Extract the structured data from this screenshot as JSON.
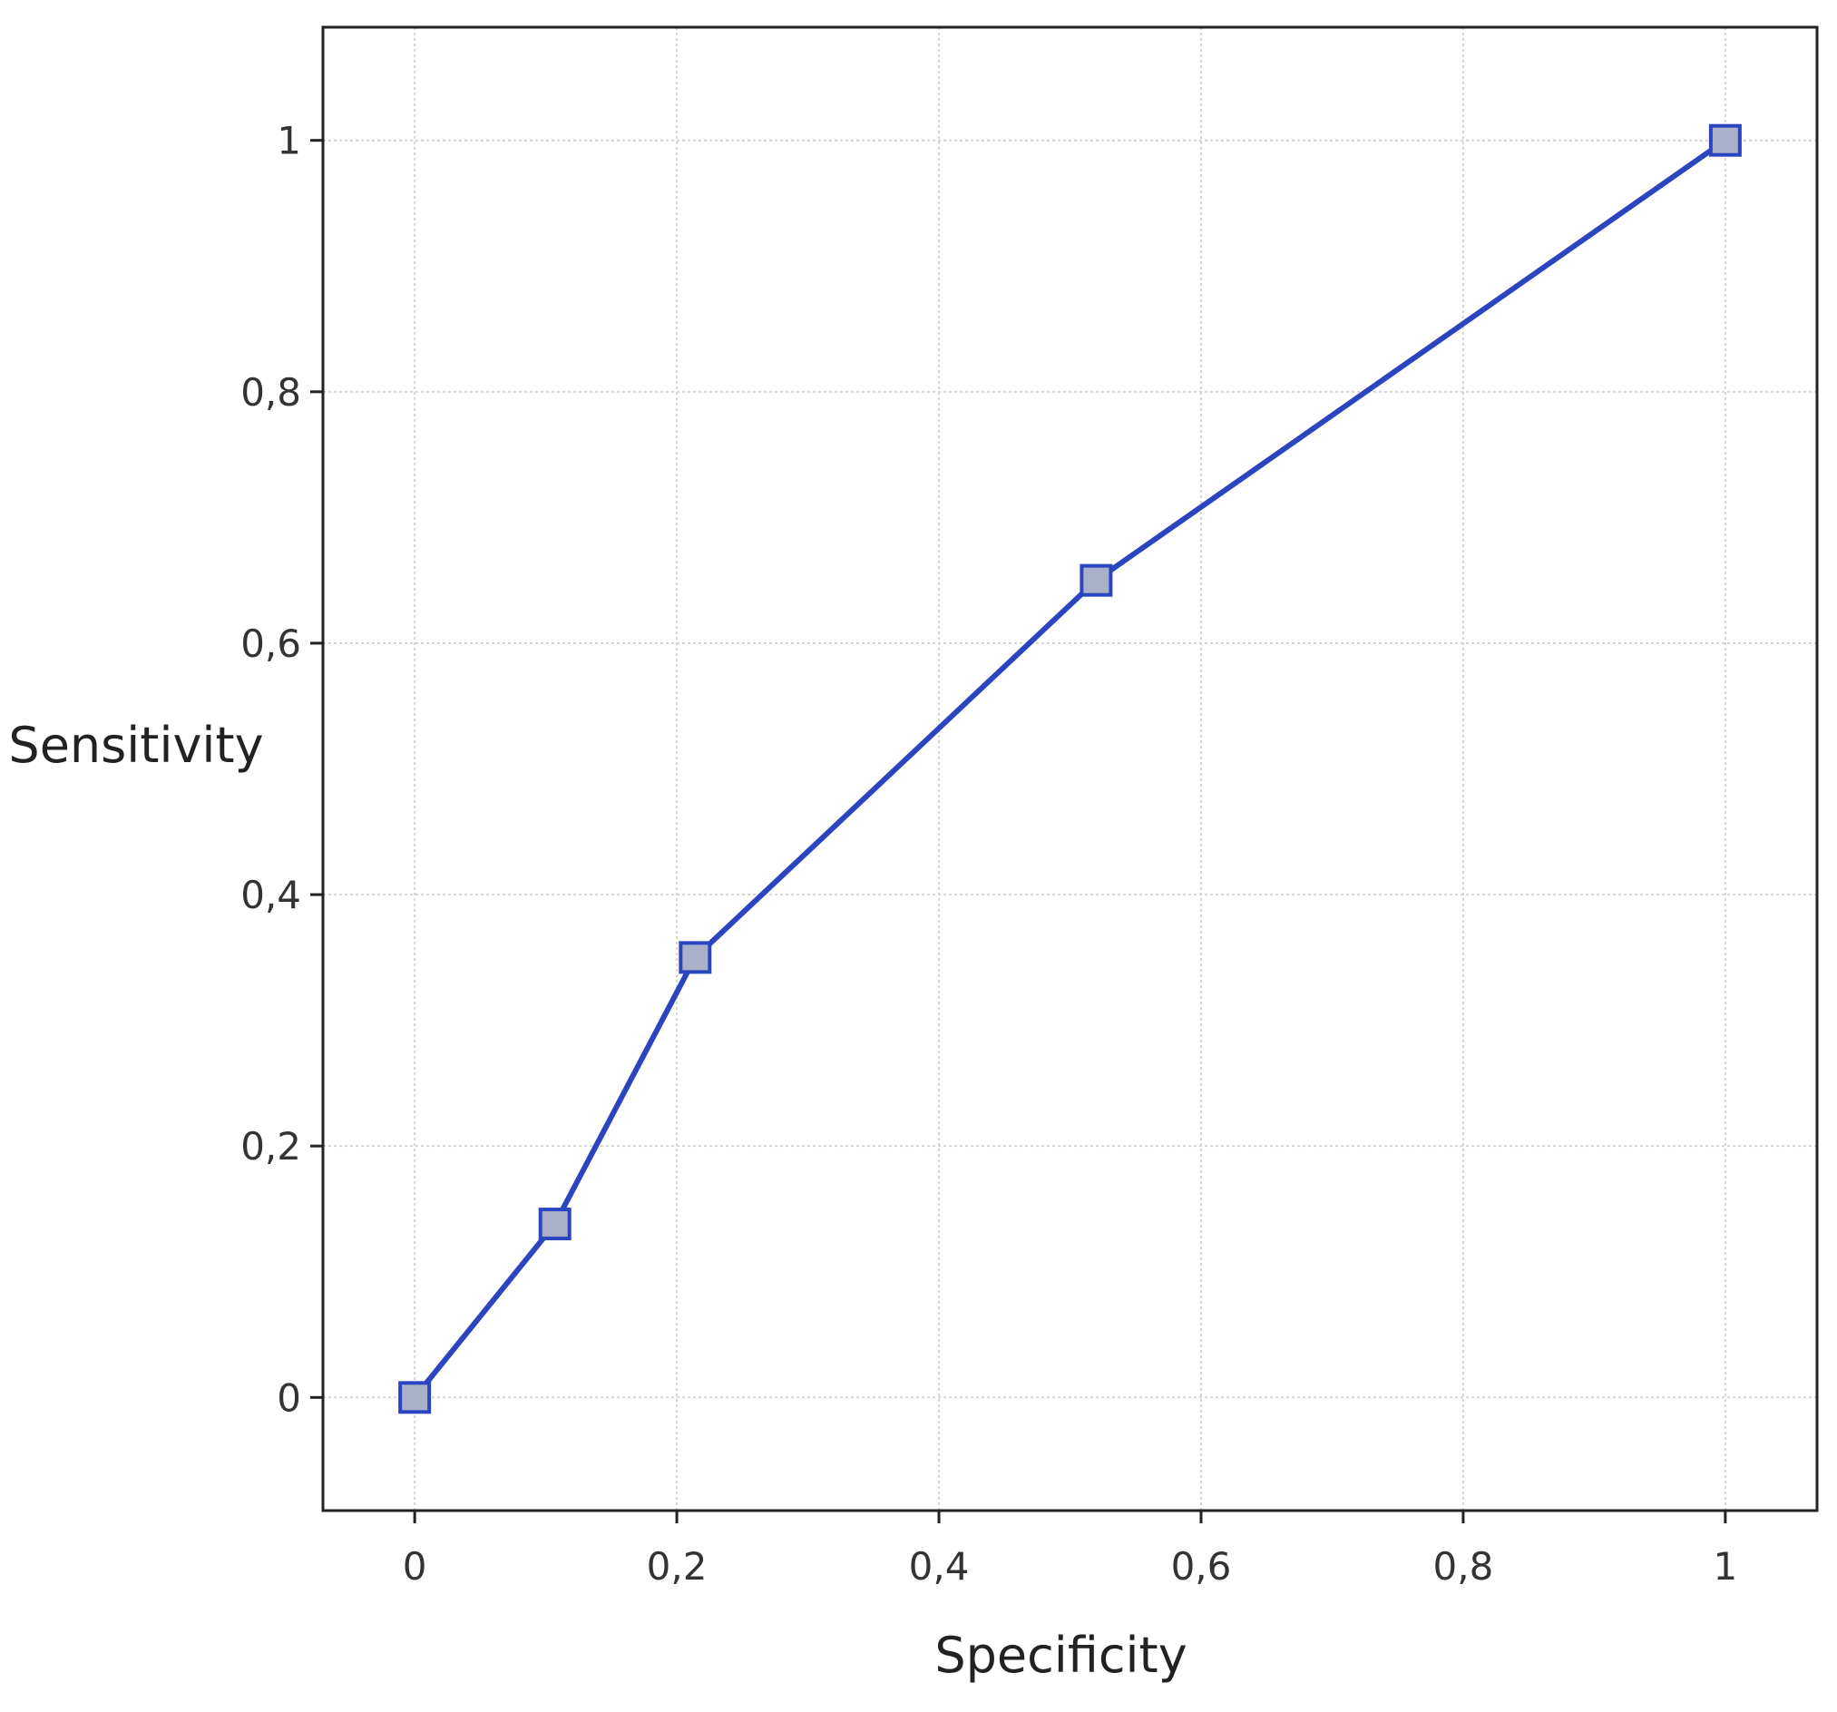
{
  "chart_data": {
    "type": "line",
    "xlabel": "Specificity",
    "ylabel": "Sensitivity",
    "xlim": [
      -0.07,
      1.07
    ],
    "ylim": [
      -0.09,
      1.09
    ],
    "x_ticks": [
      0,
      0.2,
      0.4,
      0.6,
      0.8,
      1
    ],
    "y_ticks": [
      0,
      0.2,
      0.4,
      0.6,
      0.8,
      1
    ],
    "x_tick_labels": [
      "0",
      "0,2",
      "0,4",
      "0,6",
      "0,8",
      "1"
    ],
    "y_tick_labels": [
      "0",
      "0,2",
      "0,4",
      "0,6",
      "0,8",
      "1"
    ],
    "grid": true,
    "marker": "square",
    "series": [
      {
        "x": [
          0,
          0.107,
          0.214,
          0.52,
          1
        ],
        "y": [
          0,
          0.138,
          0.35,
          0.65,
          1
        ],
        "color": "#2b45c0",
        "marker_fill": "#a9b1c9"
      }
    ]
  }
}
